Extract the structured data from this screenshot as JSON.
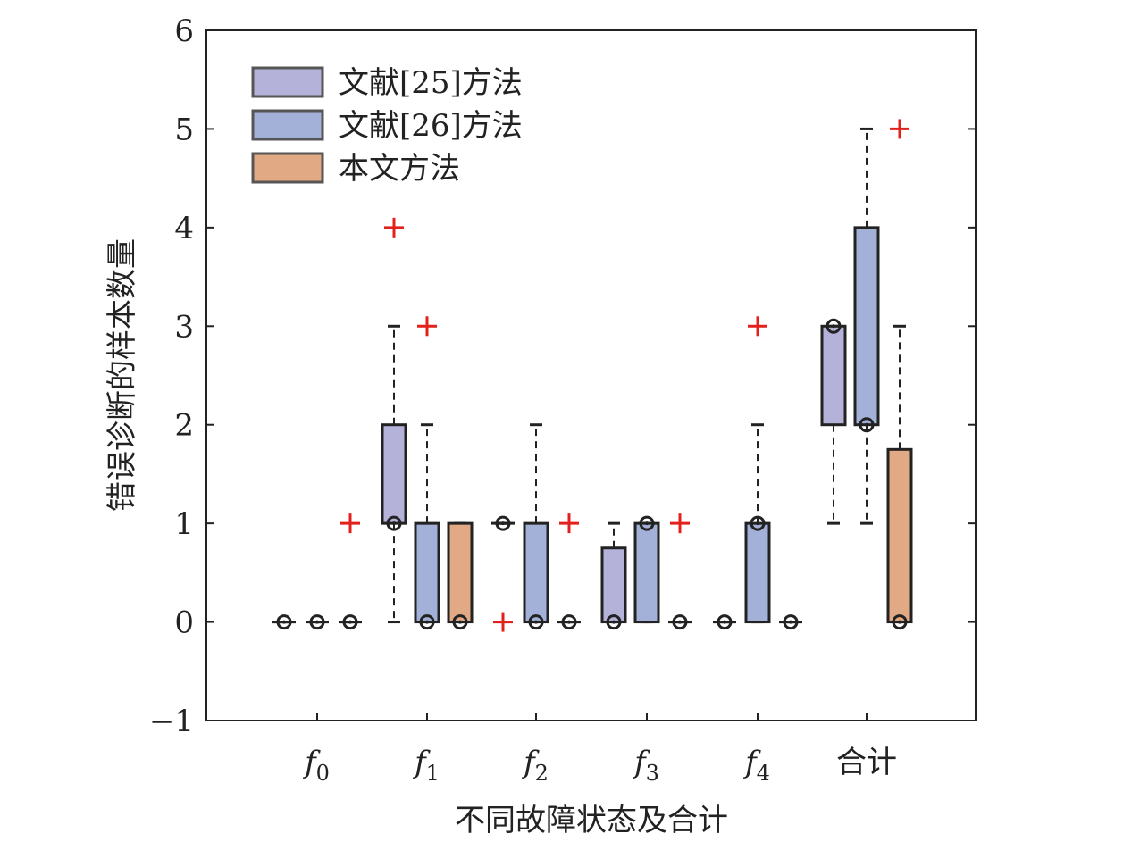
{
  "chart_data": {
    "type": "boxplot",
    "xlabel": "不同故障状态及合计",
    "ylabel": "错误诊断的样本数量",
    "ylim": [
      -1,
      6
    ],
    "yticks": [
      -1,
      0,
      1,
      2,
      3,
      4,
      5,
      6
    ],
    "categories": [
      {
        "base": "f",
        "sub": "0"
      },
      {
        "base": "f",
        "sub": "1"
      },
      {
        "base": "f",
        "sub": "2"
      },
      {
        "base": "f",
        "sub": "3"
      },
      {
        "base": "f",
        "sub": "4"
      },
      {
        "base": "合计",
        "sub": ""
      }
    ],
    "legend_position": "top-left",
    "grid": false,
    "series": [
      {
        "name": "文献[25]方法",
        "color": "#b5b2d9",
        "boxes": [
          {
            "whisker_low": 0,
            "q1": 0,
            "q3": 0,
            "whisker_high": 0,
            "median": 0,
            "outliers": []
          },
          {
            "whisker_low": 0,
            "q1": 1,
            "q3": 2,
            "whisker_high": 3,
            "median": 1,
            "outliers": [
              4
            ]
          },
          {
            "whisker_low": 1,
            "q1": 1,
            "q3": 1,
            "whisker_high": 1,
            "median": 1,
            "outliers": [
              0
            ]
          },
          {
            "whisker_low": 0,
            "q1": 0,
            "q3": 0.75,
            "whisker_high": 1,
            "median": 0,
            "outliers": []
          },
          {
            "whisker_low": 0,
            "q1": 0,
            "q3": 0,
            "whisker_high": 0,
            "median": 0,
            "outliers": []
          },
          {
            "whisker_low": 1,
            "q1": 2,
            "q3": 3,
            "whisker_high": 3,
            "median": 3,
            "outliers": []
          }
        ]
      },
      {
        "name": "文献[26]方法",
        "color": "#a3b1d8",
        "boxes": [
          {
            "whisker_low": 0,
            "q1": 0,
            "q3": 0,
            "whisker_high": 0,
            "median": 0,
            "outliers": []
          },
          {
            "whisker_low": 0,
            "q1": 0,
            "q3": 1,
            "whisker_high": 2,
            "median": 0,
            "outliers": [
              3
            ]
          },
          {
            "whisker_low": 0,
            "q1": 0,
            "q3": 1,
            "whisker_high": 2,
            "median": 0,
            "outliers": []
          },
          {
            "whisker_low": 0,
            "q1": 0,
            "q3": 1,
            "whisker_high": 1,
            "median": 1,
            "outliers": []
          },
          {
            "whisker_low": 0,
            "q1": 0,
            "q3": 1,
            "whisker_high": 2,
            "median": 1,
            "outliers": [
              3
            ]
          },
          {
            "whisker_low": 1,
            "q1": 2,
            "q3": 4,
            "whisker_high": 5,
            "median": 2,
            "outliers": []
          }
        ]
      },
      {
        "name": "本文方法",
        "color": "#e2aa84",
        "boxes": [
          {
            "whisker_low": 0,
            "q1": 0,
            "q3": 0,
            "whisker_high": 0,
            "median": 0,
            "outliers": [
              1
            ]
          },
          {
            "whisker_low": 0,
            "q1": 0,
            "q3": 1,
            "whisker_high": 1,
            "median": 0,
            "outliers": []
          },
          {
            "whisker_low": 0,
            "q1": 0,
            "q3": 0,
            "whisker_high": 0,
            "median": 0,
            "outliers": [
              1
            ]
          },
          {
            "whisker_low": 0,
            "q1": 0,
            "q3": 0,
            "whisker_high": 0,
            "median": 0,
            "outliers": [
              1
            ]
          },
          {
            "whisker_low": 0,
            "q1": 0,
            "q3": 0,
            "whisker_high": 0,
            "median": 0,
            "outliers": []
          },
          {
            "whisker_low": 0,
            "q1": 0,
            "q3": 1.75,
            "whisker_high": 3,
            "median": 0,
            "outliers": [
              5
            ]
          }
        ]
      }
    ]
  }
}
